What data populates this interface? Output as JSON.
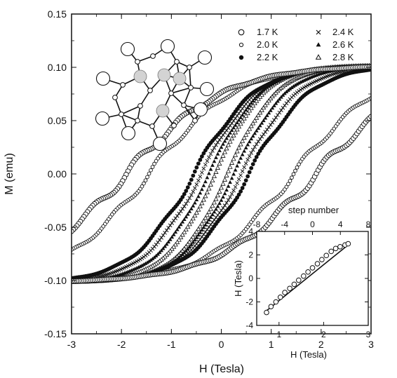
{
  "chart_data": [
    {
      "type": "scatter",
      "description_role": "main",
      "xlabel": "H (Tesla)",
      "ylabel": "M (emu)",
      "xlim": [
        -3,
        3
      ],
      "ylim": [
        -0.15,
        0.15
      ],
      "xticks": [
        "-3",
        "-2",
        "-1",
        "0",
        "1",
        "2",
        "3"
      ],
      "yticks": [
        "-0.15",
        "-0.10",
        "-0.05",
        "0.00",
        "0.05",
        "0.10",
        "0.15"
      ],
      "Ms": 0.102,
      "legend_position": "top-right",
      "series": [
        {
          "name": "1.7 K",
          "marker": "open-circle",
          "coercive_field": 1.9,
          "steps": 0.9,
          "values_ascending": [
            [
              -3,
              -0.102
            ],
            [
              -2.5,
              -0.096
            ],
            [
              -2,
              -0.089
            ],
            [
              -1.5,
              -0.081
            ],
            [
              -1,
              -0.072
            ],
            [
              -0.5,
              -0.061
            ],
            [
              0,
              -0.049
            ],
            [
              0.5,
              -0.035
            ],
            [
              1,
              -0.018
            ],
            [
              1.5,
              0.003
            ],
            [
              1.9,
              0.03
            ],
            [
              2.3,
              0.062
            ],
            [
              2.7,
              0.088
            ],
            [
              3,
              0.102
            ]
          ]
        },
        {
          "name": "2.0 K",
          "marker": "small-circle",
          "coercive_field": 1.45,
          "steps": 0.8,
          "values_ascending": [
            [
              -3,
              -0.102
            ],
            [
              -2,
              -0.087
            ],
            [
              -1,
              -0.064
            ],
            [
              0,
              -0.036
            ],
            [
              0.5,
              -0.02
            ],
            [
              1,
              0.0
            ],
            [
              1.45,
              0.035
            ],
            [
              2,
              0.075
            ],
            [
              2.5,
              0.093
            ],
            [
              3,
              0.102
            ]
          ]
        },
        {
          "name": "2.2 K",
          "marker": "filled-circle",
          "coercive_field": 0.55,
          "steps": 0.7,
          "values_ascending": [
            [
              -3,
              -0.102
            ],
            [
              -2,
              -0.082
            ],
            [
              -1,
              -0.052
            ],
            [
              -0.5,
              -0.035
            ],
            [
              0,
              -0.015
            ],
            [
              0.55,
              0.028
            ],
            [
              1,
              0.058
            ],
            [
              1.5,
              0.08
            ],
            [
              2,
              0.092
            ],
            [
              3,
              0.102
            ]
          ]
        },
        {
          "name": "2.4 K",
          "marker": "cross",
          "coercive_field": 0.4,
          "steps": 0.5,
          "values_ascending": [
            [
              -3,
              -0.102
            ],
            [
              -2,
              -0.08
            ],
            [
              -1,
              -0.048
            ],
            [
              0,
              -0.01
            ],
            [
              0.4,
              0.025
            ],
            [
              1,
              0.062
            ],
            [
              2,
              0.094
            ],
            [
              3,
              0.102
            ]
          ]
        },
        {
          "name": "2.6 K",
          "marker": "filled-triangle",
          "coercive_field": 0.25,
          "steps": 0.4,
          "values_ascending": [
            [
              -3,
              -0.102
            ],
            [
              -2,
              -0.08
            ],
            [
              -1,
              -0.045
            ],
            [
              0,
              0.0
            ],
            [
              0.25,
              0.02
            ],
            [
              1,
              0.068
            ],
            [
              2,
              0.095
            ],
            [
              3,
              0.102
            ]
          ]
        },
        {
          "name": "2.8 K",
          "marker": "open-triangle",
          "coercive_field": 0.12,
          "steps": 0.3,
          "values_ascending": [
            [
              -3,
              -0.102
            ],
            [
              -2,
              -0.08
            ],
            [
              -1,
              -0.045
            ],
            [
              0,
              0.01
            ],
            [
              1,
              0.07
            ],
            [
              2,
              0.096
            ],
            [
              3,
              0.102
            ]
          ]
        }
      ]
    },
    {
      "type": "scatter",
      "description_role": "inset",
      "xlabel": "H (Tesla)",
      "ylabel": "H (Tesla)",
      "top_label": "step number",
      "xlim": [
        0.5,
        3
      ],
      "ylim": [
        -4,
        4
      ],
      "top_xlim": [
        -8,
        8
      ],
      "xticks": [
        "1",
        "2",
        "3"
      ],
      "yticks": [
        "-4",
        "-2",
        "0",
        "2",
        "4"
      ],
      "top_xticks": [
        "-8",
        "-4",
        "0",
        "4",
        "8"
      ],
      "points": [
        [
          0.72,
          -2.9
        ],
        [
          0.82,
          -2.4
        ],
        [
          0.93,
          -2.0
        ],
        [
          1.03,
          -1.6
        ],
        [
          1.13,
          -1.2
        ],
        [
          1.24,
          -0.85
        ],
        [
          1.34,
          -0.5
        ],
        [
          1.44,
          -0.15
        ],
        [
          1.55,
          0.2
        ],
        [
          1.65,
          0.55
        ],
        [
          1.75,
          0.9
        ],
        [
          1.86,
          1.25
        ],
        [
          1.96,
          1.6
        ],
        [
          2.06,
          1.95
        ],
        [
          2.17,
          2.3
        ],
        [
          2.27,
          2.55
        ],
        [
          2.37,
          2.7
        ],
        [
          2.48,
          2.85
        ],
        [
          2.55,
          2.95
        ]
      ],
      "fit_line": [
        [
          0.72,
          -2.75
        ],
        [
          2.55,
          2.85
        ]
      ]
    }
  ],
  "legend": [
    {
      "label": "1.7 K",
      "marker": "open-circle"
    },
    {
      "label": "2.0 K",
      "marker": "small-circle"
    },
    {
      "label": "2.2 K",
      "marker": "filled-circle"
    },
    {
      "label": "2.4 K",
      "marker": "cross"
    },
    {
      "label": "2.6 K",
      "marker": "filled-triangle"
    },
    {
      "label": "2.8 K",
      "marker": "open-triangle"
    }
  ],
  "colors": {
    "ink": "#111111",
    "cluster_node": "#d3d3d3",
    "background": "#ffffff"
  }
}
